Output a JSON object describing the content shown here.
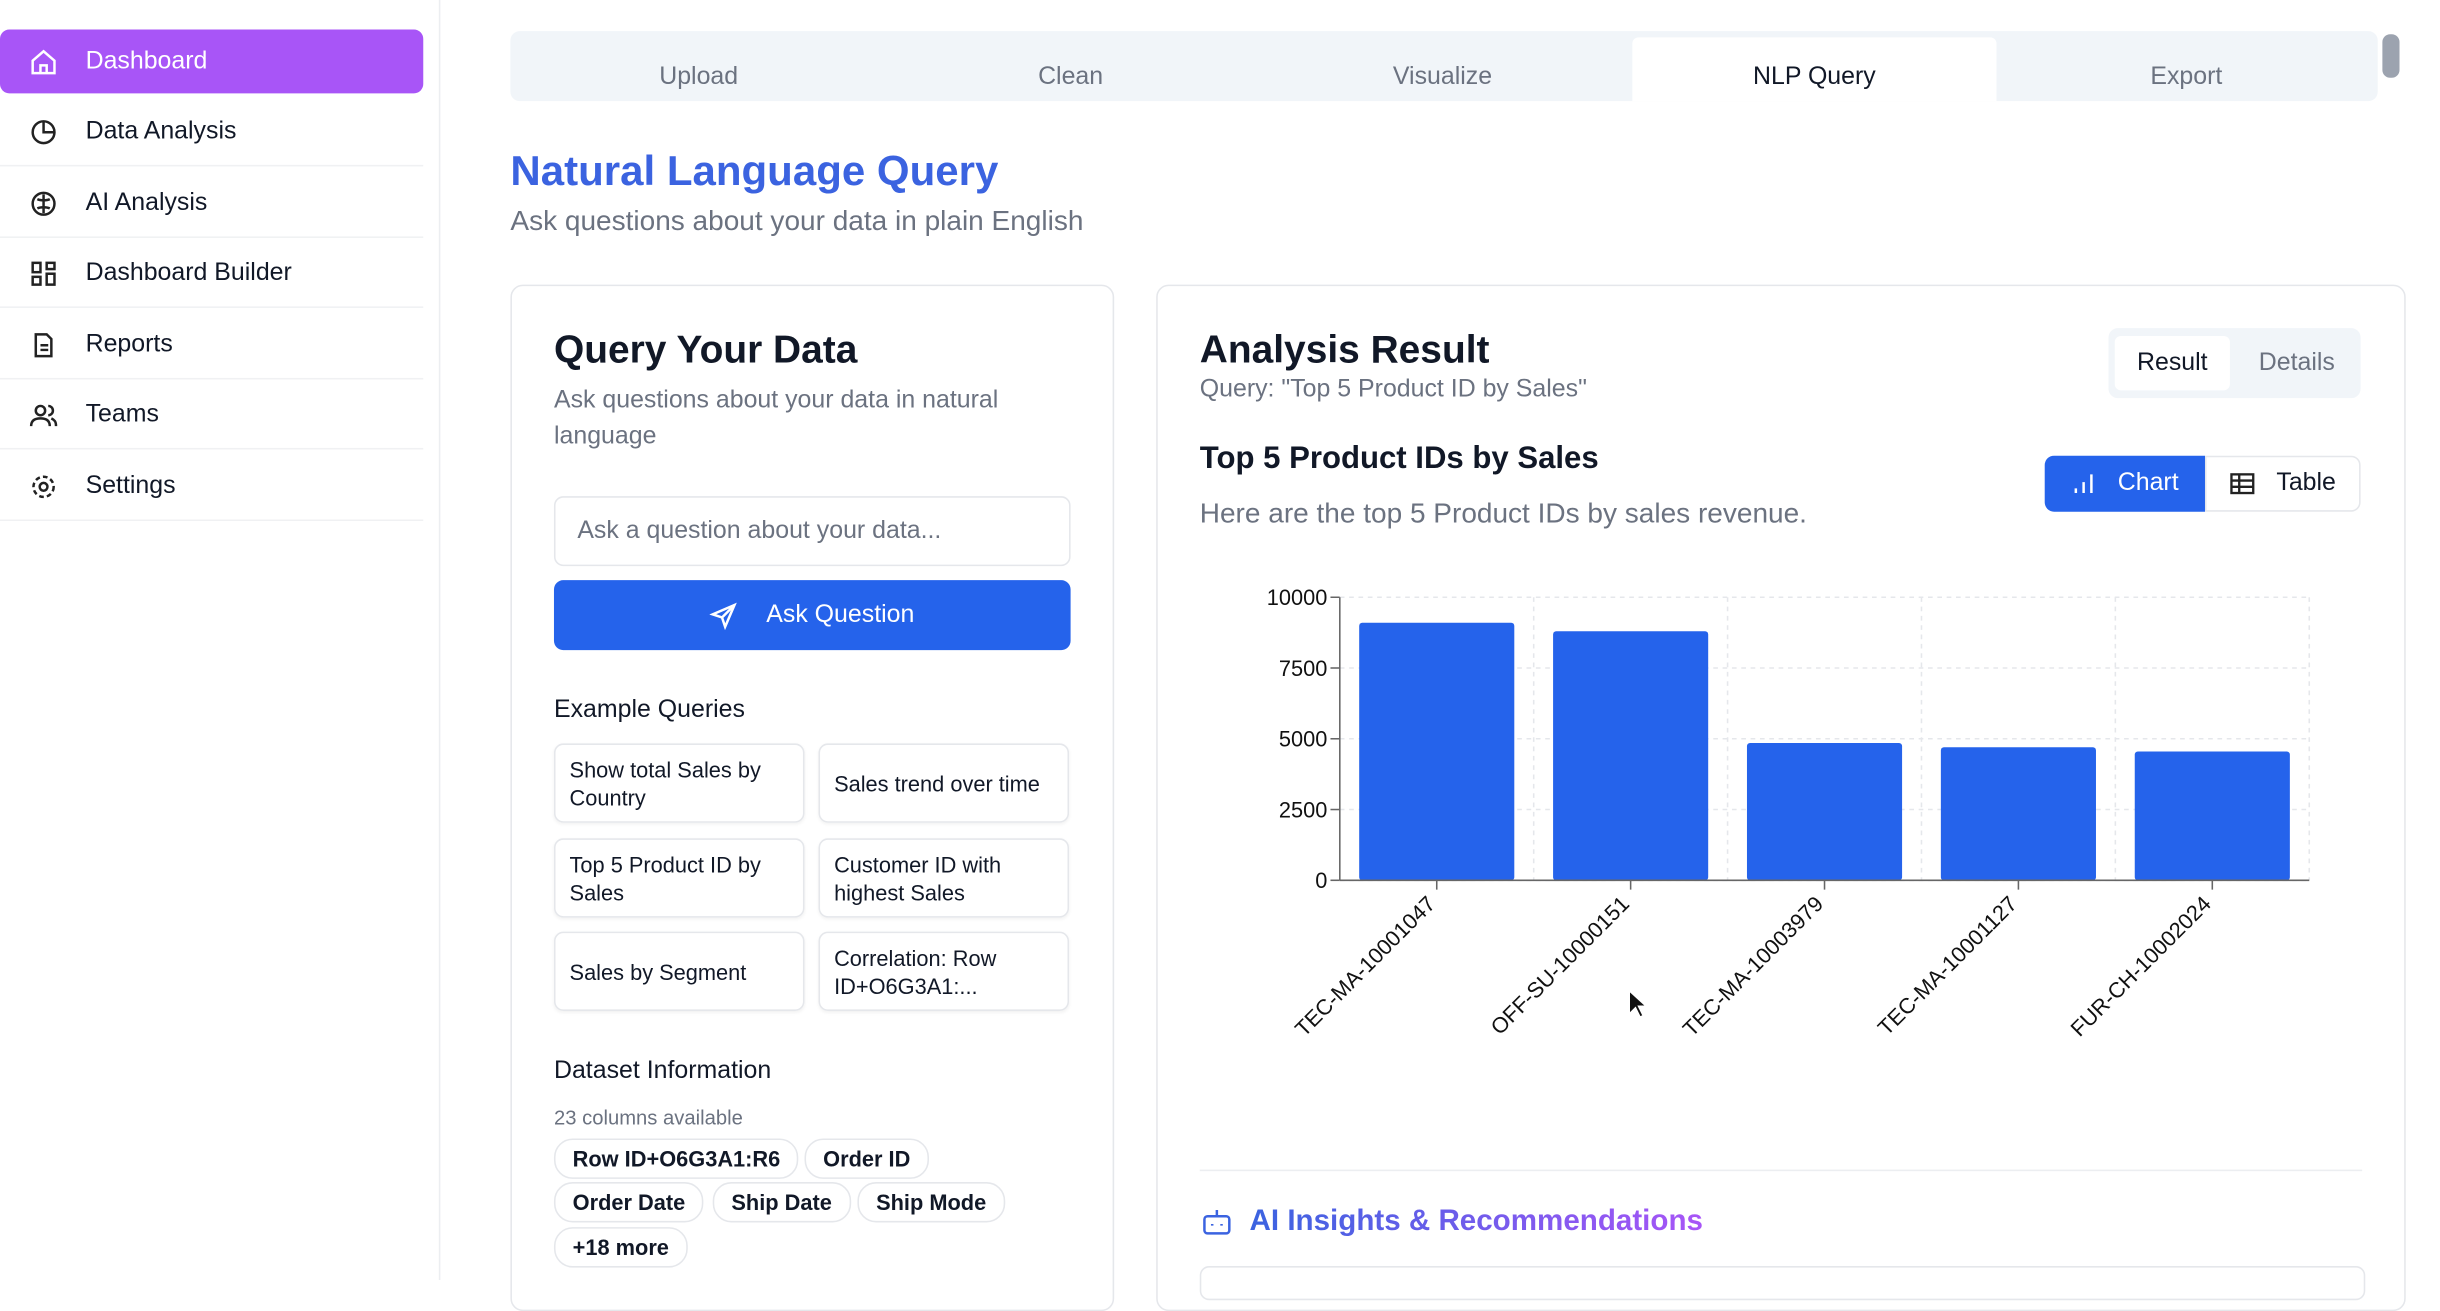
{
  "sidebar": {
    "items": [
      "Dashboard",
      "Data Analysis",
      "AI Analysis",
      "Dashboard Builder",
      "Reports",
      "Teams",
      "Settings"
    ]
  },
  "tabs": [
    "Upload",
    "Clean",
    "Visualize",
    "NLP Query",
    "Export"
  ],
  "header": {
    "title": "Natural Language Query",
    "subtitle": "Ask questions about your data in plain English"
  },
  "query_panel": {
    "title": "Query Your Data",
    "subtitle": "Ask questions about your data in natural language",
    "input_placeholder": "Ask a question about your data...",
    "button": "Ask Question",
    "examples_title": "Example Queries",
    "examples": [
      "Show total Sales by Country",
      "Sales trend over time",
      "Top 5 Product ID by Sales",
      "Customer ID with highest Sales",
      "Sales by Segment",
      "Correlation: Row ID+O6G3A1:..."
    ],
    "dataset_title": "Dataset Information",
    "dataset_count": "23 columns available",
    "columns": [
      "Row ID+O6G3A1:R6",
      "Order ID",
      "Order Date",
      "Ship Date",
      "Ship Mode"
    ],
    "more": "+18 more"
  },
  "result_panel": {
    "title": "Analysis Result",
    "query": "Query: \"Top 5 Product ID by Sales\"",
    "view_tabs": [
      "Result",
      "Details"
    ],
    "toggle": [
      "Chart",
      "Table"
    ],
    "insights_title": "AI Insights & Recommendations"
  },
  "chart_data": {
    "type": "bar",
    "title": "Top 5 Product IDs by Sales",
    "subtitle": "Here are the top 5 Product IDs by sales revenue.",
    "categories": [
      "TEC-MA-10001047",
      "OFF-SU-10000151",
      "TEC-MA-10003979",
      "TEC-MA-10001127",
      "FUR-CH-10002024"
    ],
    "values": [
      9100,
      8800,
      4850,
      4700,
      4550
    ],
    "color": "#2563eb",
    "ylim": [
      0,
      10000
    ],
    "yticks": [
      0,
      2500,
      5000,
      7500,
      10000
    ],
    "grid": true
  }
}
